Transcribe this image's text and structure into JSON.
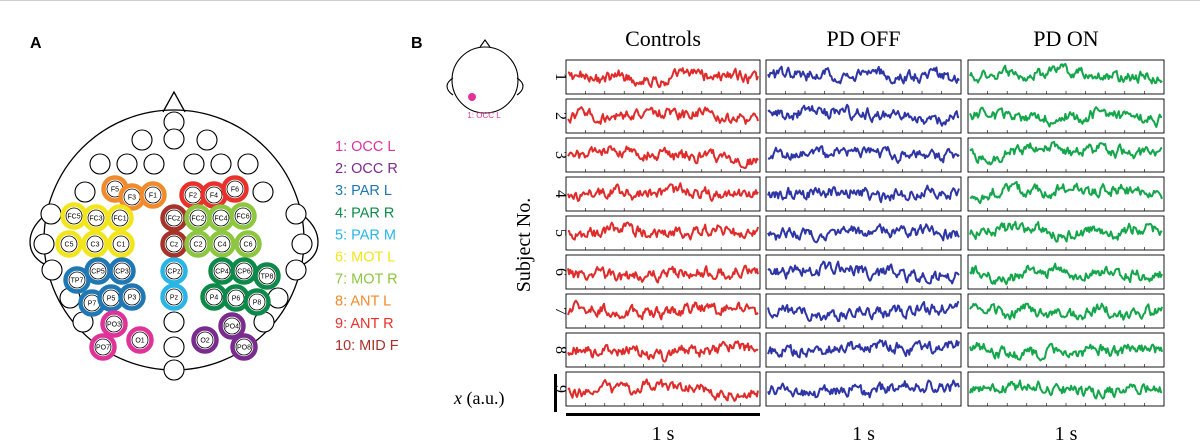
{
  "panel_a": {
    "label": "A",
    "electrodes": [
      {
        "name": "F5",
        "group": 8
      },
      {
        "name": "F3",
        "group": 8
      },
      {
        "name": "F1",
        "group": 8
      },
      {
        "name": "F2",
        "group": 9
      },
      {
        "name": "F4",
        "group": 9
      },
      {
        "name": "F6",
        "group": 9
      },
      {
        "name": "FC5",
        "group": 6
      },
      {
        "name": "FC3",
        "group": 6
      },
      {
        "name": "FC1",
        "group": 6
      },
      {
        "name": "FCz",
        "group": 10
      },
      {
        "name": "FC2",
        "group": 7
      },
      {
        "name": "FC4",
        "group": 7
      },
      {
        "name": "FC6",
        "group": 7
      },
      {
        "name": "C5",
        "group": 6
      },
      {
        "name": "C3",
        "group": 6
      },
      {
        "name": "C1",
        "group": 6
      },
      {
        "name": "Cz",
        "group": 10
      },
      {
        "name": "C2",
        "group": 7
      },
      {
        "name": "C4",
        "group": 7
      },
      {
        "name": "C6",
        "group": 7
      },
      {
        "name": "TP7",
        "group": 3
      },
      {
        "name": "CP5",
        "group": 3
      },
      {
        "name": "CP3",
        "group": 3
      },
      {
        "name": "CPz",
        "group": 5
      },
      {
        "name": "CP4",
        "group": 4
      },
      {
        "name": "CP6",
        "group": 4
      },
      {
        "name": "TP8",
        "group": 4
      },
      {
        "name": "P7",
        "group": 3
      },
      {
        "name": "P5",
        "group": 3
      },
      {
        "name": "P3",
        "group": 3
      },
      {
        "name": "Pz",
        "group": 5
      },
      {
        "name": "P4",
        "group": 4
      },
      {
        "name": "P6",
        "group": 4
      },
      {
        "name": "P8",
        "group": 4
      },
      {
        "name": "PO3",
        "group": 1
      },
      {
        "name": "PO7",
        "group": 1
      },
      {
        "name": "O1",
        "group": 1
      },
      {
        "name": "O2",
        "group": 2
      },
      {
        "name": "PO4",
        "group": 2
      },
      {
        "name": "PO8",
        "group": 2
      }
    ],
    "legend": [
      {
        "label": "1: OCC L",
        "color": "#e0339a"
      },
      {
        "label": "2: OCC R",
        "color": "#7a2c8e"
      },
      {
        "label": "3: PAR L",
        "color": "#1f78b4"
      },
      {
        "label": "4: PAR R",
        "color": "#0d8a4a"
      },
      {
        "label": "5: PAR M",
        "color": "#29b6e6"
      },
      {
        "label": "6: MOT L",
        "color": "#f2e51a"
      },
      {
        "label": "7: MOT R",
        "color": "#8dc63f"
      },
      {
        "label": "8: ANT L",
        "color": "#f08a2a"
      },
      {
        "label": "9: ANT R",
        "color": "#e8312b"
      },
      {
        "label": "10: MID F",
        "color": "#a7322a"
      }
    ]
  },
  "panel_b": {
    "label": "B",
    "inset_label": "1: OCC L",
    "inset_color": "#e0339a",
    "ylabel": "Subject No.",
    "amplitude_label_var": "x",
    "amplitude_label_unit": " (a.u.)",
    "time_scale_label": "1 s",
    "subjects": [
      "1",
      "2",
      "3",
      "4",
      "5",
      "6",
      "7",
      "8",
      "9"
    ],
    "groups": [
      {
        "name": "Controls",
        "color": "#e02b2b"
      },
      {
        "name": "PD OFF",
        "color": "#2e35a4"
      },
      {
        "name": "PD ON",
        "color": "#14a64a"
      }
    ]
  }
}
